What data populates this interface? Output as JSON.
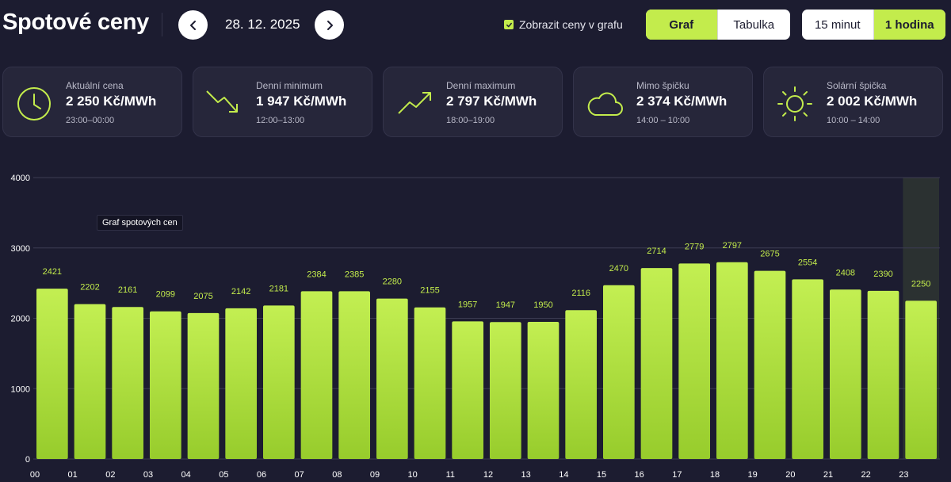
{
  "header": {
    "title": "Spotové ceny",
    "date": "28. 12. 2025",
    "prev_icon": "chevron-left-icon",
    "next_icon": "chevron-right-icon",
    "show_prices_label": "Zobrazit ceny v grafu",
    "show_prices_checked": true,
    "view_toggle": {
      "graph": "Graf",
      "table": "Tabulka",
      "active": "graph"
    },
    "interval_toggle": {
      "q15": "15 minut",
      "h1": "1 hodina",
      "active": "h1"
    }
  },
  "cards": [
    {
      "icon": "clock-icon",
      "label": "Aktuální cena",
      "value": "2 250 Kč/MWh",
      "time": "23:00–00:00"
    },
    {
      "icon": "trend-down-icon",
      "label": "Denní minimum",
      "value": "1 947 Kč/MWh",
      "time": "12:00–13:00"
    },
    {
      "icon": "trend-up-icon",
      "label": "Denní maximum",
      "value": "2 797 Kč/MWh",
      "time": "18:00–19:00"
    },
    {
      "icon": "cloud-icon",
      "label": "Mimo špičku",
      "value": "2 374 Kč/MWh",
      "time": "14:00 – 10:00"
    },
    {
      "icon": "sun-icon",
      "label": "Solární špička",
      "value": "2 002 Kč/MWh",
      "time": "10:00 – 14:00"
    }
  ],
  "colors": {
    "background": "#1c1c30",
    "card": "#26263a",
    "accent": "#c3ec4c",
    "bar_top": "#c3ef52",
    "bar_bottom": "#97cc2c"
  },
  "chart_tooltip": "Graf spotových cen",
  "chart_data": {
    "type": "bar",
    "categories": [
      "00",
      "01",
      "02",
      "03",
      "04",
      "05",
      "06",
      "07",
      "08",
      "09",
      "10",
      "11",
      "12",
      "13",
      "14",
      "15",
      "16",
      "17",
      "18",
      "19",
      "20",
      "21",
      "22",
      "23"
    ],
    "values": [
      2421,
      2202,
      2161,
      2099,
      2075,
      2142,
      2181,
      2384,
      2385,
      2280,
      2155,
      1957,
      1947,
      1950,
      2116,
      2470,
      2714,
      2779,
      2797,
      2675,
      2554,
      2408,
      2390,
      2250
    ],
    "y_ticks": [
      0,
      1000,
      2000,
      3000,
      4000
    ],
    "ylim": [
      0,
      4000
    ],
    "highlighted_category": "23",
    "data_labels": true,
    "grid": true
  }
}
